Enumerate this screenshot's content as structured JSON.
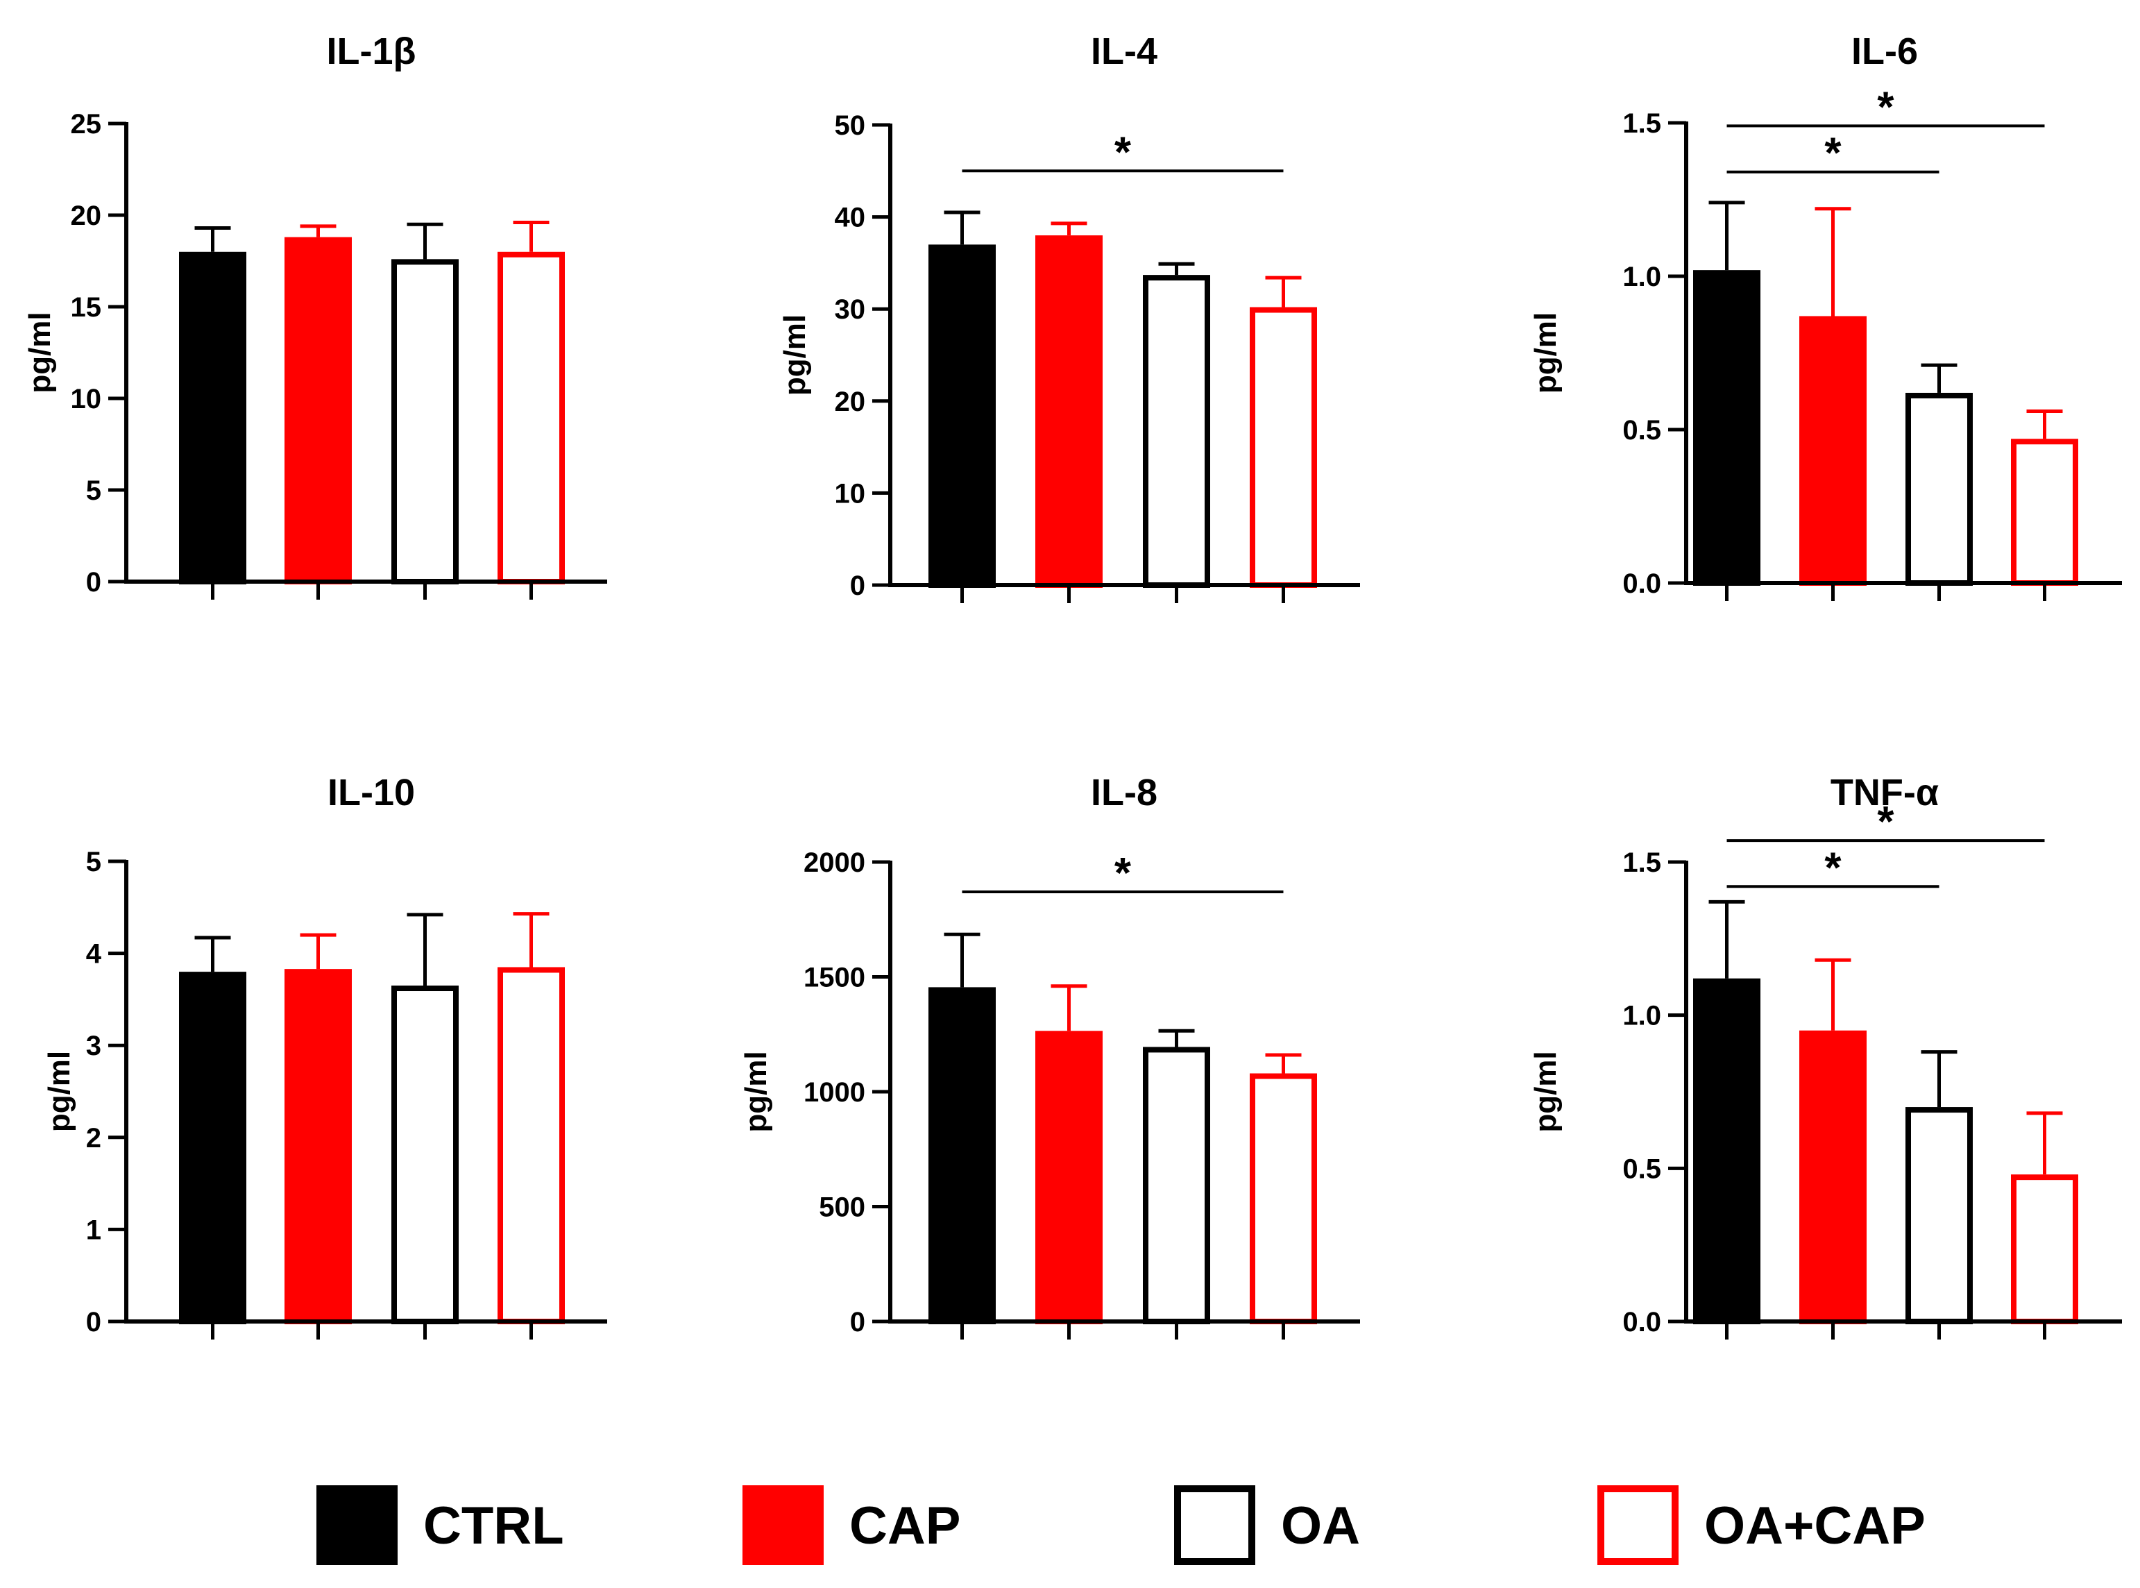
{
  "colors": {
    "ctrl": "#000000",
    "cap": "#ff0000",
    "oa_stroke": "#000000",
    "oacap_stroke": "#ff0000",
    "open_fill": "#ffffff"
  },
  "legend": {
    "items": [
      {
        "label": "CTRL",
        "fill": "#000000",
        "stroke": "#000000"
      },
      {
        "label": "CAP",
        "fill": "#ff0000",
        "stroke": "#ff0000"
      },
      {
        "label": "OA",
        "fill": "#ffffff",
        "stroke": "#000000"
      },
      {
        "label": "OA+CAP",
        "fill": "#ffffff",
        "stroke": "#ff0000"
      }
    ]
  },
  "chart_data": [
    {
      "type": "bar",
      "title": "IL-1β",
      "ylabel": "pg/ml",
      "categories": [
        "CTRL",
        "CAP",
        "OA",
        "OA+CAP"
      ],
      "values": [
        18.0,
        18.8,
        17.6,
        18.0
      ],
      "errors": [
        1.3,
        0.6,
        1.9,
        1.6
      ],
      "ylim": [
        0,
        25
      ],
      "yticks": [
        0,
        5,
        10,
        15,
        20,
        25
      ],
      "yticklabels": [
        "0",
        "5",
        "10",
        "15",
        "20",
        "25"
      ],
      "significance": []
    },
    {
      "type": "bar",
      "title": "IL-4",
      "ylabel": "pg/ml",
      "categories": [
        "CTRL",
        "CAP",
        "OA",
        "OA+CAP"
      ],
      "values": [
        37.0,
        38.0,
        33.7,
        30.2
      ],
      "errors": [
        3.5,
        1.3,
        1.2,
        3.2
      ],
      "ylim": [
        0,
        50
      ],
      "yticks": [
        0,
        10,
        20,
        30,
        40,
        50
      ],
      "yticklabels": [
        "0",
        "10",
        "20",
        "30",
        "40",
        "50"
      ],
      "significance": [
        {
          "from": 0,
          "to": 3,
          "y": 45,
          "label": "*"
        }
      ]
    },
    {
      "type": "bar",
      "title": "IL-6",
      "ylabel": "pg/ml",
      "categories": [
        "CTRL",
        "CAP",
        "OA",
        "OA+CAP"
      ],
      "values": [
        1.02,
        0.87,
        0.62,
        0.47
      ],
      "errors": [
        0.22,
        0.35,
        0.09,
        0.09
      ],
      "ylim": [
        0,
        1.5
      ],
      "yticks": [
        0,
        0.5,
        1.0,
        1.5
      ],
      "yticklabels": [
        "0.0",
        "0.5",
        "1.0",
        "1.5"
      ],
      "significance": [
        {
          "from": 0,
          "to": 3,
          "y": 1.49,
          "label": "*"
        },
        {
          "from": 0,
          "to": 2,
          "y": 1.34,
          "label": "*"
        }
      ]
    },
    {
      "type": "bar",
      "title": "IL-10",
      "ylabel": "pg/ml",
      "categories": [
        "CTRL",
        "CAP",
        "OA",
        "OA+CAP"
      ],
      "values": [
        3.8,
        3.83,
        3.65,
        3.85
      ],
      "errors": [
        0.37,
        0.37,
        0.77,
        0.58
      ],
      "ylim": [
        0,
        5
      ],
      "yticks": [
        0,
        1,
        2,
        3,
        4,
        5
      ],
      "yticklabels": [
        "0",
        "1",
        "2",
        "3",
        "4",
        "5"
      ],
      "significance": []
    },
    {
      "type": "bar",
      "title": "IL-8",
      "ylabel": "pg/ml",
      "categories": [
        "CTRL",
        "CAP",
        "OA",
        "OA+CAP"
      ],
      "values": [
        1455,
        1265,
        1195,
        1080
      ],
      "errors": [
        230,
        195,
        70,
        80
      ],
      "ylim": [
        0,
        2000
      ],
      "yticks": [
        0,
        500,
        1000,
        1500,
        2000
      ],
      "yticklabels": [
        "0",
        "500",
        "1000",
        "1500",
        "2000"
      ],
      "significance": [
        {
          "from": 0,
          "to": 3,
          "y": 1870,
          "label": "*"
        }
      ]
    },
    {
      "type": "bar",
      "title": "TNF-α",
      "ylabel": "pg/ml",
      "categories": [
        "CTRL",
        "CAP",
        "OA",
        "OA+CAP"
      ],
      "values": [
        1.12,
        0.95,
        0.7,
        0.48
      ],
      "errors": [
        0.25,
        0.23,
        0.18,
        0.2
      ],
      "ylim": [
        0,
        1.5
      ],
      "yticks": [
        0,
        0.5,
        1.0,
        1.5
      ],
      "yticklabels": [
        "0.0",
        "0.5",
        "1.0",
        "1.5"
      ],
      "significance": [
        {
          "from": 0,
          "to": 3,
          "y": 1.57,
          "label": "*"
        },
        {
          "from": 0,
          "to": 2,
          "y": 1.42,
          "label": "*"
        }
      ]
    }
  ]
}
